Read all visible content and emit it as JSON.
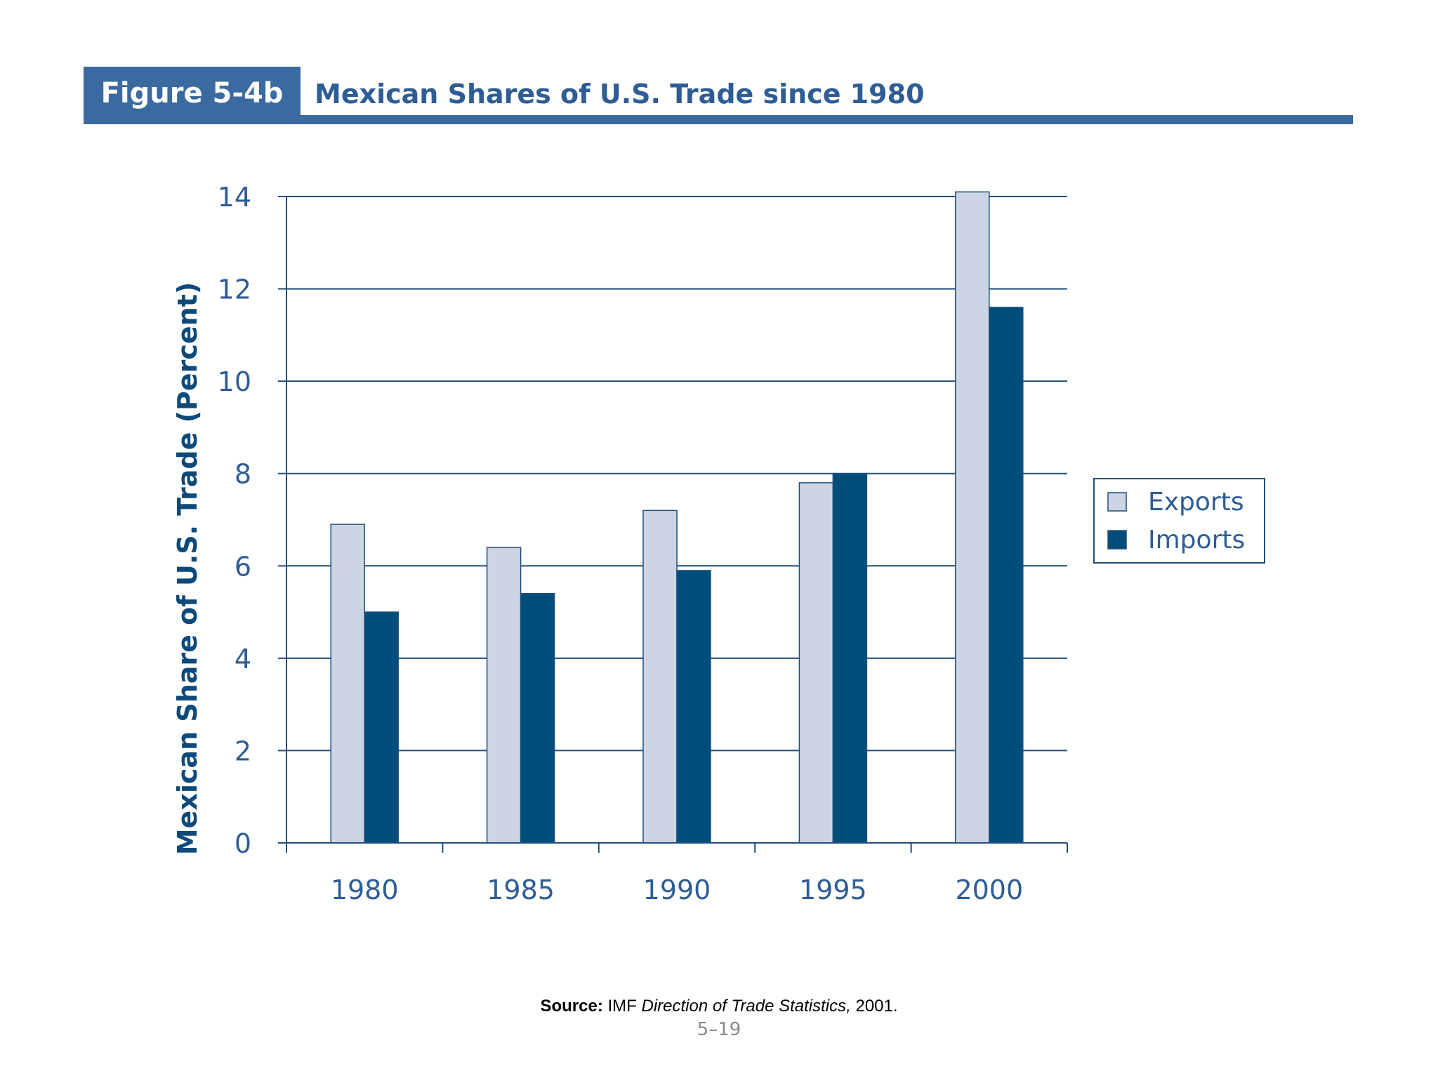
{
  "header": {
    "figure_label": "Figure 5-4b",
    "title": "Mexican Shares of U.S. Trade since 1980"
  },
  "footer": {
    "source_label": "Source:",
    "source_org": "IMF",
    "source_publication": "Direction of Trade Statistics,",
    "source_year": "2001.",
    "page_number": "5–19"
  },
  "colors": {
    "header_blue": "#3a6aa0",
    "exports": "#cdd5e4",
    "imports": "#004d7a",
    "axis": "#1f4f7c"
  },
  "chart_data": {
    "type": "bar",
    "title": "",
    "xlabel": "",
    "ylabel": "Mexican Share of U.S. Trade (Percent)",
    "ylim": [
      0,
      14
    ],
    "yticks": [
      0,
      2,
      4,
      6,
      8,
      10,
      12,
      14
    ],
    "grid": true,
    "legend_position": "right",
    "categories": [
      "1980",
      "1985",
      "1990",
      "1995",
      "2000"
    ],
    "series": [
      {
        "name": "Exports",
        "values": [
          6.9,
          6.4,
          7.2,
          7.8,
          14.1
        ]
      },
      {
        "name": "Imports",
        "values": [
          5.0,
          5.4,
          5.9,
          8.0,
          11.6
        ]
      }
    ]
  }
}
